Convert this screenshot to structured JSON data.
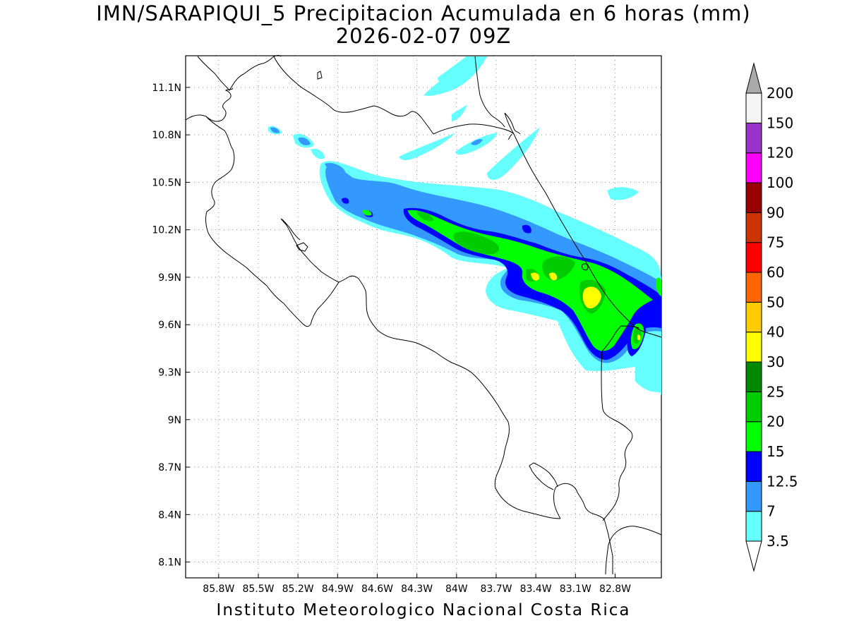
{
  "title": "IMN/SARAPIQUI_5 Precipitacion Acumulada en 6 horas (mm)",
  "subtitle": "2026-02-07 09Z",
  "footer": "Instituto Meteorologico Nacional Costa Rica",
  "map": {
    "lon_range": [
      -86.05,
      -82.45
    ],
    "lat_range": [
      8.0,
      11.3
    ],
    "lon_ticks": [
      "85.8W",
      "85.5W",
      "85.2W",
      "84.9W",
      "84.6W",
      "84.3W",
      "84W",
      "83.7W",
      "83.4W",
      "83.1W",
      "82.8W"
    ],
    "lat_ticks": [
      "11.1N",
      "10.8N",
      "10.5N",
      "10.2N",
      "9.9N",
      "9.6N",
      "9.3N",
      "9N",
      "8.7N",
      "8.4N",
      "8.1N"
    ],
    "grid": true
  },
  "colorbar": {
    "labels": [
      "3.5",
      "7",
      "12.5",
      "15",
      "20",
      "25",
      "30",
      "40",
      "50",
      "60",
      "75",
      "90",
      "100",
      "120",
      "150",
      "200"
    ],
    "colors": [
      "#66ffff",
      "#3399ff",
      "#0000ff",
      "#00ff00",
      "#00cc00",
      "#008800",
      "#ffff00",
      "#ffcc00",
      "#ff6600",
      "#ff0000",
      "#cc3300",
      "#990000",
      "#ff00ff",
      "#9933cc",
      "#f5f5f5"
    ],
    "end_high": "#aaaaaa",
    "end_low": "#ffffff"
  }
}
